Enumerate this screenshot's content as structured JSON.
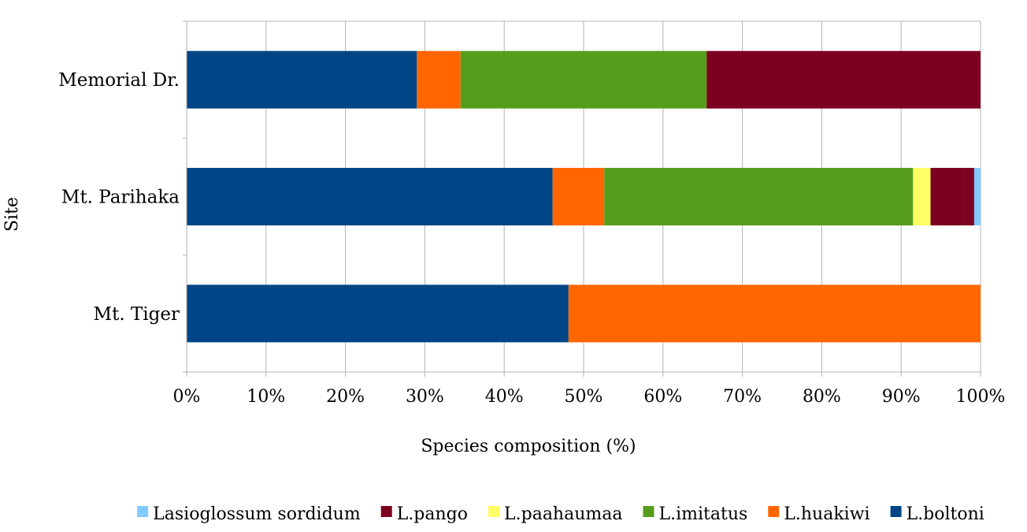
{
  "chart_data": {
    "type": "bar",
    "orientation": "horizontal",
    "stacked": "percent",
    "categories": [
      "Memorial Dr.",
      "Mt. Parihaka",
      "Mt. Tiger"
    ],
    "xlabel": "Species composition (%)",
    "ylabel": "Site",
    "xlim": [
      0,
      100
    ],
    "x_ticks": [
      "0%",
      "10%",
      "20%",
      "30%",
      "40%",
      "50%",
      "60%",
      "70%",
      "80%",
      "90%",
      "100%"
    ],
    "grid": "vertical",
    "legend_position": "bottom",
    "series": [
      {
        "name": "L.boltoni",
        "color": "#004586",
        "values": [
          29,
          46.1,
          48.1
        ]
      },
      {
        "name": "L.huakiwi",
        "color": "#ff6600",
        "values": [
          5.5,
          6.5,
          51.9
        ]
      },
      {
        "name": "L.imitatus",
        "color": "#579d1c",
        "values": [
          31,
          38.9,
          0
        ]
      },
      {
        "name": "L.paahaumaa",
        "color": "#ffff66",
        "values": [
          0,
          2.2,
          0
        ]
      },
      {
        "name": "L.pango",
        "color": "#7e0021",
        "values": [
          34.5,
          5.5,
          0
        ]
      },
      {
        "name": "Lasioglossum sordidum",
        "color": "#83caff",
        "values": [
          0,
          0.8,
          0
        ]
      }
    ],
    "legend_order": [
      "Lasioglossum sordidum",
      "L.pango",
      "L.paahaumaa",
      "L.imitatus",
      "L.huakiwi",
      "L.boltoni"
    ]
  }
}
